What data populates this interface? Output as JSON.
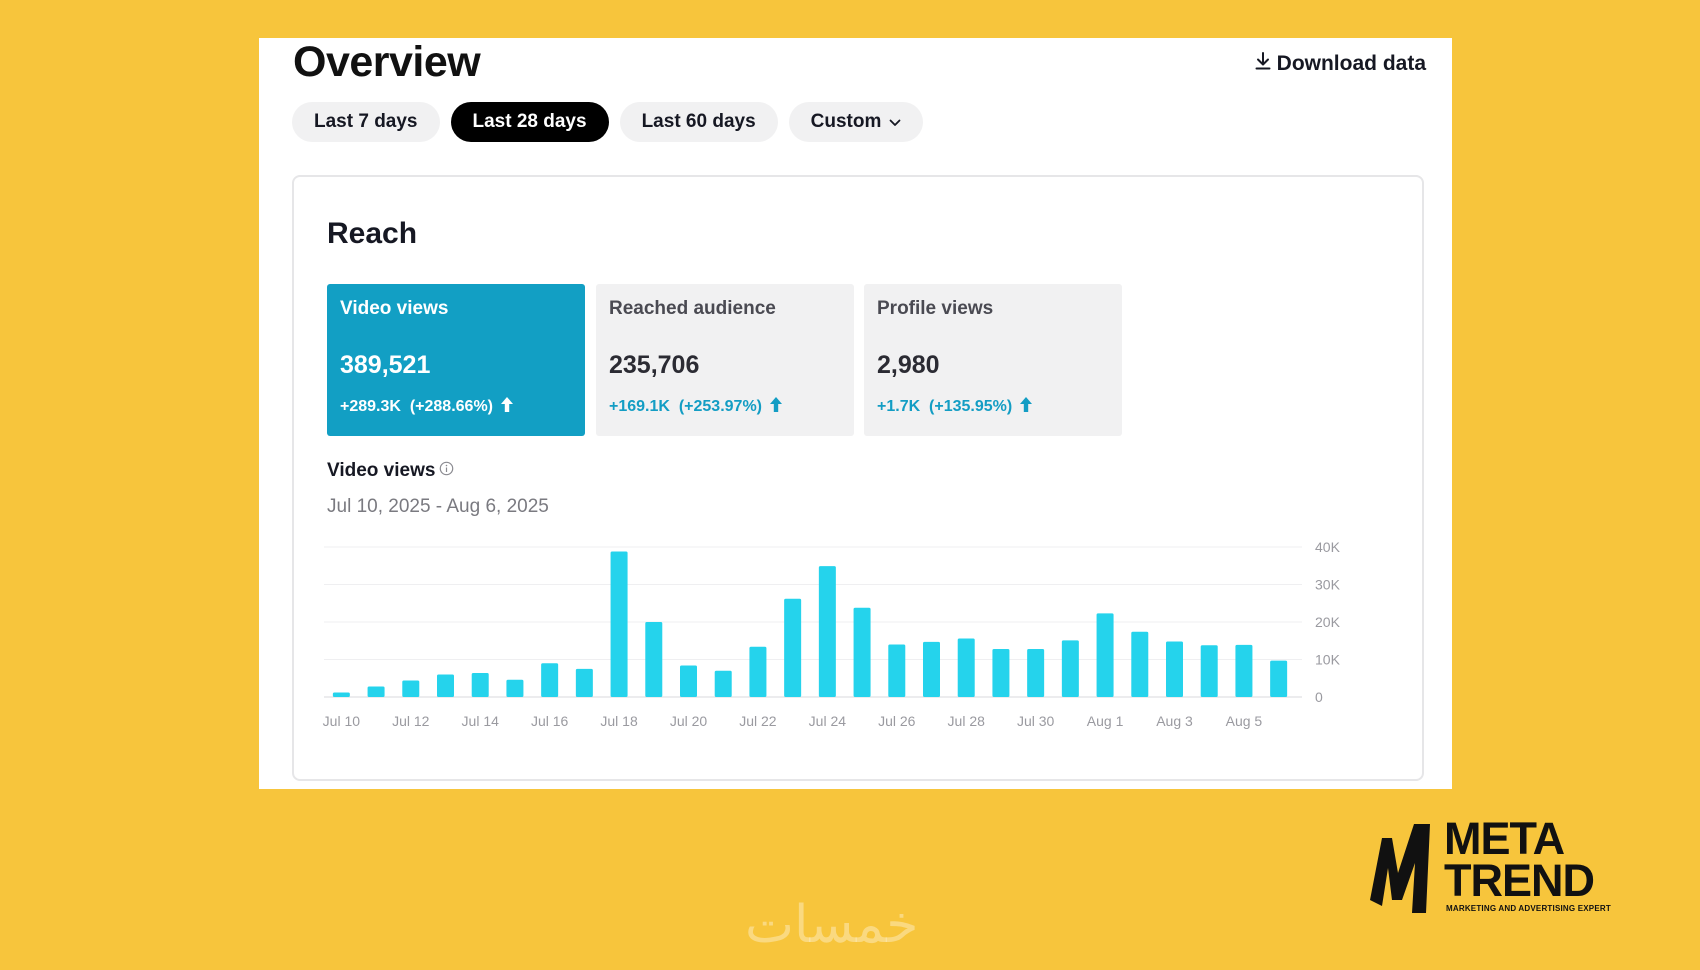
{
  "header": {
    "title": "Overview",
    "download_label": "Download data"
  },
  "filters": [
    {
      "label": "Last 7 days",
      "active": false
    },
    {
      "label": "Last 28 days",
      "active": true
    },
    {
      "label": "Last 60 days",
      "active": false
    },
    {
      "label": "Custom",
      "active": false
    }
  ],
  "reach": {
    "title": "Reach",
    "metrics": [
      {
        "label": "Video views",
        "value": "389,521",
        "delta": "+289.3K  (+288.66%)",
        "active": true
      },
      {
        "label": "Reached audience",
        "value": "235,706",
        "delta": "+169.1K  (+253.97%)",
        "active": false
      },
      {
        "label": "Profile views",
        "value": "2,980",
        "delta": "+1.7K  (+135.95%)",
        "active": false
      }
    ]
  },
  "chart": {
    "title": "Video views",
    "date_range": "Jul 10, 2025 - Aug 6, 2025"
  },
  "chart_data": {
    "type": "bar",
    "title": "Video views",
    "categories": [
      "Jul 10",
      "Jul 11",
      "Jul 12",
      "Jul 13",
      "Jul 14",
      "Jul 15",
      "Jul 16",
      "Jul 17",
      "Jul 18",
      "Jul 19",
      "Jul 20",
      "Jul 21",
      "Jul 22",
      "Jul 23",
      "Jul 24",
      "Jul 25",
      "Jul 26",
      "Jul 27",
      "Jul 28",
      "Jul 29",
      "Jul 30",
      "Jul 31",
      "Aug 1",
      "Aug 2",
      "Aug 3",
      "Aug 4",
      "Aug 5",
      "Aug 6"
    ],
    "values": [
      1200,
      2800,
      4400,
      6000,
      6400,
      4600,
      9000,
      7500,
      38800,
      20000,
      8400,
      7000,
      13400,
      26200,
      34900,
      23800,
      14000,
      14700,
      15600,
      12800,
      12800,
      15100,
      22300,
      17400,
      14800,
      13800,
      13900,
      9700
    ],
    "x_tick_labels": [
      "Jul 10",
      "Jul 12",
      "Jul 14",
      "Jul 16",
      "Jul 18",
      "Jul 20",
      "Jul 22",
      "Jul 24",
      "Jul 26",
      "Jul 28",
      "Jul 30",
      "Aug 1",
      "Aug 3",
      "Aug 5"
    ],
    "y_tick_labels": [
      "40K",
      "30K",
      "20K",
      "10K",
      "0"
    ],
    "y_ticks": [
      40000,
      30000,
      20000,
      10000,
      0
    ],
    "ylim": [
      0,
      40000
    ],
    "color": "#25D3EC",
    "grid": true
  },
  "branding": {
    "logo_line1": "META",
    "logo_line2": "TREND",
    "logo_tagline": "MARKETING AND ADVERTISING EXPERT",
    "watermark": "خمسات"
  }
}
